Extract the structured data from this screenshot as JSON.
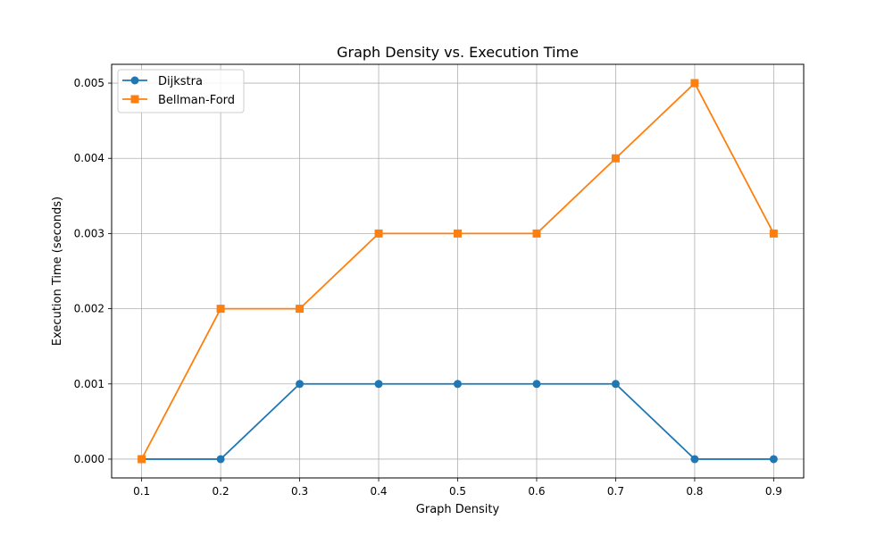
{
  "chart_data": {
    "type": "line",
    "title": "Graph Density vs. Execution Time",
    "xlabel": "Graph Density",
    "ylabel": "Execution Time (seconds)",
    "x": [
      0.1,
      0.2,
      0.3,
      0.4,
      0.5,
      0.6,
      0.7,
      0.8,
      0.9
    ],
    "xticks": [
      "0.1",
      "0.2",
      "0.3",
      "0.4",
      "0.5",
      "0.6",
      "0.7",
      "0.8",
      "0.9"
    ],
    "yticks": [
      "0.000",
      "0.001",
      "0.002",
      "0.003",
      "0.004",
      "0.005"
    ],
    "xlim": [
      0.062,
      0.938
    ],
    "ylim": [
      -0.00025,
      0.00525
    ],
    "grid": true,
    "legend_position": "top-left",
    "series": [
      {
        "name": "Dijkstra",
        "color": "#1f77b4",
        "marker": "circle",
        "values": [
          0.0,
          0.0,
          0.001,
          0.001,
          0.001,
          0.001,
          0.001,
          0.0,
          0.0
        ]
      },
      {
        "name": "Bellman-Ford",
        "color": "#ff7f0e",
        "marker": "square",
        "values": [
          0.0,
          0.002,
          0.002,
          0.003,
          0.003,
          0.003,
          0.004,
          0.005,
          0.003
        ]
      }
    ]
  }
}
